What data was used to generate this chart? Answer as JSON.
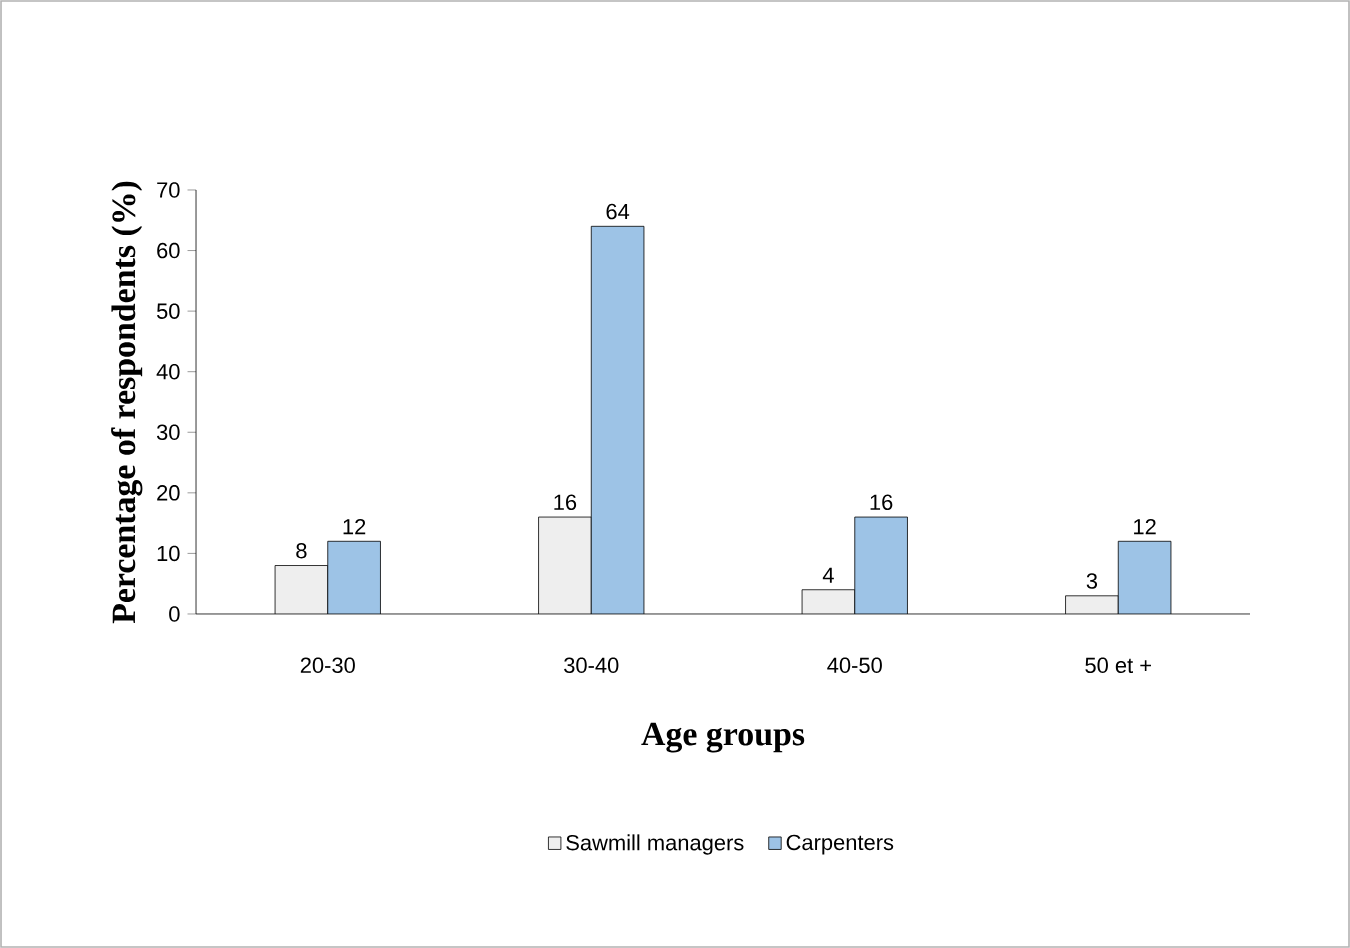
{
  "chart_data": {
    "type": "bar",
    "categories": [
      "20-30",
      "30-40",
      "40-50",
      "50 et +"
    ],
    "xlabel": "Age groups",
    "ylabel": "Percentage of respondents (%)",
    "series": [
      {
        "name": "Sawmill managers",
        "color": "#eeeeee",
        "values": [
          8,
          16,
          4,
          3
        ]
      },
      {
        "name": "Carpenters",
        "color": "#9dc3e6",
        "values": [
          12,
          64,
          16,
          12
        ]
      }
    ],
    "ylim": [
      0,
      70
    ],
    "yticks": [
      0,
      10,
      20,
      30,
      40,
      50,
      60,
      70
    ],
    "data_labels": true,
    "legend": "bottom",
    "grid": false
  }
}
